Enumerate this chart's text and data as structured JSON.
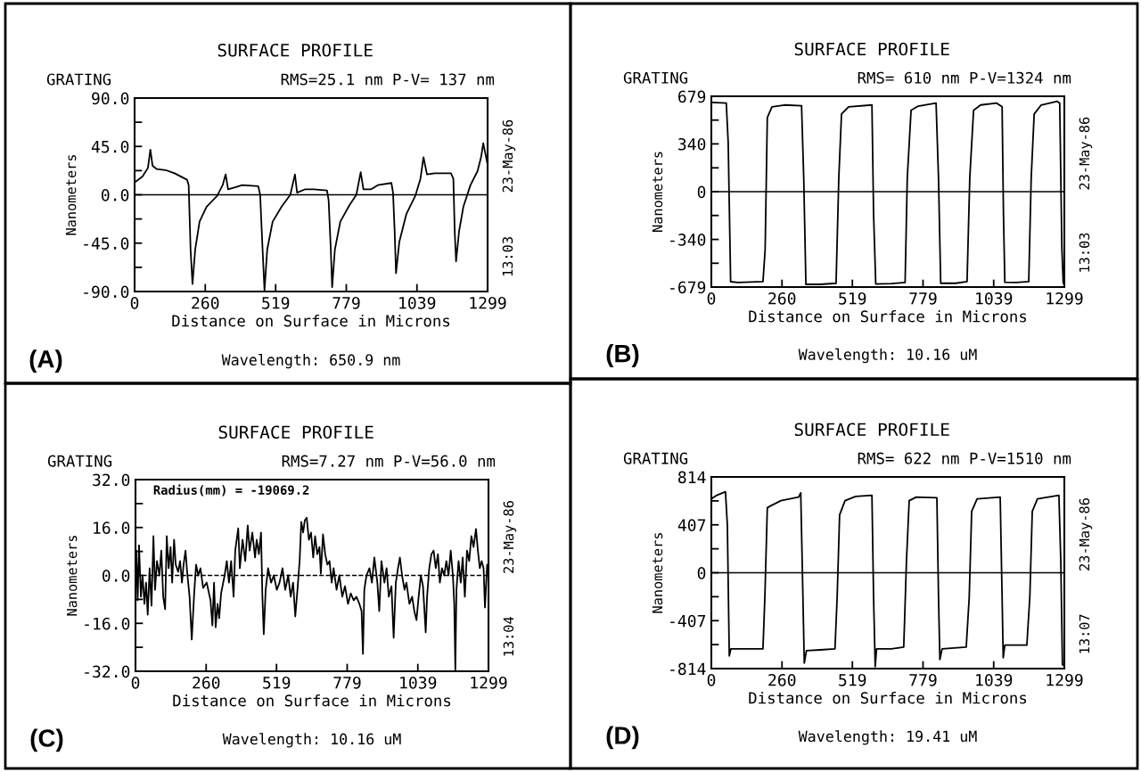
{
  "chart_data": [
    {
      "type": "line",
      "title": "SURFACE PROFILE",
      "xlabel": "Distance on Surface in Microns",
      "ylabel": "Nanometers",
      "annotations": [
        "GRATING",
        "RMS=25.1 nm P-V= 137 nm",
        "23-May-86",
        "13:03",
        "(A)",
        "Wavelength: 650.9 nm"
      ],
      "xlim": [
        0,
        1299
      ],
      "xticks": [
        0,
        260,
        519,
        779,
        1039,
        1299
      ],
      "ylim": [
        -90,
        90
      ],
      "yticks": [
        {
          "value": -90,
          "label": "-90.0"
        },
        {
          "value": -67.5,
          "label": null
        },
        {
          "value": -45,
          "label": "-45.0"
        },
        {
          "value": -22.5,
          "label": null
        },
        {
          "value": 0,
          "label": "0.0"
        },
        {
          "value": 22.5,
          "label": null
        },
        {
          "value": 45,
          "label": "45.0"
        },
        {
          "value": 67.5,
          "label": null
        },
        {
          "value": 90,
          "label": "90.0"
        }
      ],
      "grid": false,
      "legend": false,
      "marker": "none",
      "line_style": "solid",
      "ref_lines": [
        {
          "axis": "y",
          "value": 0,
          "color": "#000000",
          "line_style": "solid"
        }
      ],
      "series": [
        {
          "color": "#000000",
          "x": [
            3,
            29,
            49,
            58,
            66,
            81,
            114,
            147,
            193,
            199,
            206,
            213,
            223,
            239,
            265,
            304,
            324,
            335,
            344,
            370,
            396,
            455,
            462,
            471,
            478,
            488,
            508,
            541,
            573,
            590,
            598,
            626,
            659,
            708,
            714,
            722,
            727,
            737,
            757,
            790,
            816,
            832,
            842,
            869,
            895,
            945,
            951,
            957,
            962,
            974,
            1000,
            1033,
            1052,
            1063,
            1076,
            1105,
            1164,
            1173,
            1178,
            1183,
            1194,
            1210,
            1236,
            1262,
            1275,
            1283,
            1291,
            1299
          ],
          "values": [
            12,
            17,
            25,
            42,
            27,
            24,
            23,
            20,
            14,
            9,
            -51,
            -83,
            -51,
            -25,
            -11,
            -1,
            9,
            19,
            5,
            7,
            9,
            8,
            0,
            -51,
            -89,
            -51,
            -25,
            -11,
            0,
            19,
            2,
            5,
            5,
            4,
            -5,
            -51,
            -86,
            -51,
            -25,
            -10,
            0,
            21,
            5,
            5,
            9,
            11,
            2,
            -34,
            -73,
            -44,
            -18,
            -1,
            15,
            35,
            19,
            20,
            20,
            15,
            -34,
            -62,
            -34,
            -11,
            9,
            22,
            35,
            48,
            38,
            28
          ]
        }
      ]
    },
    {
      "type": "line",
      "title": "SURFACE PROFILE",
      "xlabel": "Distance on Surface in Microns",
      "ylabel": "Nanometers",
      "annotations": [
        "GRATING",
        "RMS= 610 nm P-V=1324 nm",
        "23-May-86",
        "13:03",
        "(B)",
        "Wavelength: 10.16 uM"
      ],
      "xlim": [
        0,
        1299
      ],
      "xticks": [
        0,
        260,
        519,
        779,
        1039,
        1299
      ],
      "ylim": [
        -679,
        679
      ],
      "yticks": [
        -679,
        {
          "value": -509.5,
          "label": null
        },
        -340,
        {
          "value": -169.5,
          "label": null
        },
        0,
        {
          "value": 169.5,
          "label": null
        },
        340,
        {
          "value": 509.5,
          "label": null
        },
        679
      ],
      "grid": false,
      "legend": false,
      "marker": "none",
      "line_style": "solid",
      "ref_lines": [
        {
          "axis": "y",
          "value": 0,
          "color": "#000000",
          "line_style": "solid"
        }
      ],
      "series": [
        {
          "color": "#000000",
          "x": [
            3,
            55,
            62,
            71,
            98,
            190,
            198,
            206,
            223,
            269,
            332,
            340,
            348,
            400,
            459,
            469,
            479,
            505,
            591,
            597,
            605,
            663,
            713,
            721,
            735,
            761,
            827,
            836,
            844,
            899,
            941,
            951,
            965,
            991,
            1050,
            1070,
            1075,
            1080,
            1122,
            1168,
            1177,
            1188,
            1214,
            1273,
            1282,
            1290,
            1295,
            1299
          ],
          "values": [
            635,
            630,
            350,
            -641,
            -646,
            -640,
            -411,
            528,
            604,
            617,
            612,
            96,
            -660,
            -660,
            -652,
            96,
            553,
            604,
            617,
            -157,
            -657,
            -655,
            -647,
            96,
            579,
            609,
            630,
            96,
            -652,
            -652,
            -640,
            96,
            579,
            617,
            630,
            604,
            -157,
            -645,
            -647,
            -640,
            96,
            553,
            617,
            643,
            630,
            -411,
            -652,
            -614
          ]
        }
      ]
    },
    {
      "type": "line",
      "title": "SURFACE PROFILE",
      "xlabel": "Distance on Surface in Microns",
      "ylabel": "Nanometers",
      "annotations": [
        "GRATING",
        "RMS=7.27 nm P-V=56.0 nm",
        "23-May-86",
        "13:04",
        "(C)",
        "Wavelength: 10.16 uM",
        "Radius(mm) = -19069.2"
      ],
      "xlim": [
        0,
        1299
      ],
      "xticks": [
        0,
        260,
        519,
        779,
        1039,
        1299
      ],
      "ylim": [
        -32,
        32
      ],
      "yticks": [
        {
          "value": -32,
          "label": "-32.0"
        },
        {
          "value": -24,
          "label": null
        },
        {
          "value": -16,
          "label": "-16.0"
        },
        {
          "value": -8,
          "label": null
        },
        {
          "value": 0,
          "label": "0.0"
        },
        {
          "value": 8,
          "label": null
        },
        {
          "value": 16,
          "label": "16.0"
        },
        {
          "value": 24,
          "label": null
        },
        {
          "value": 32,
          "label": "32.0"
        }
      ],
      "grid": false,
      "legend": false,
      "marker": "none",
      "line_style": "solid",
      "ref_lines": [
        {
          "axis": "y",
          "value": 0,
          "color": "#000000",
          "line_style": "dashed"
        }
      ],
      "series": [
        {
          "color": "#000000",
          "x": [
            3,
            8,
            13,
            20,
            26,
            33,
            39,
            45,
            52,
            59,
            66,
            72,
            79,
            88,
            95,
            102,
            109,
            115,
            122,
            129,
            135,
            142,
            148,
            157,
            164,
            171,
            177,
            184,
            190,
            199,
            207,
            216,
            223,
            231,
            239,
            249,
            262,
            276,
            283,
            289,
            295,
            302,
            308,
            315,
            328,
            336,
            344,
            352,
            361,
            367,
            378,
            384,
            394,
            404,
            413,
            420,
            430,
            440,
            446,
            454,
            462,
            467,
            472,
            479,
            488,
            499,
            509,
            520,
            530,
            541,
            551,
            562,
            571,
            580,
            588,
            596,
            604,
            610,
            617,
            623,
            630,
            638,
            646,
            654,
            661,
            669,
            677,
            682,
            690,
            698,
            706,
            714,
            722,
            729,
            740,
            750,
            761,
            771,
            782,
            792,
            803,
            813,
            824,
            832,
            837,
            842,
            850,
            861,
            870,
            879,
            890,
            897,
            905,
            916,
            924,
            932,
            942,
            950,
            958,
            966,
            973,
            981,
            990,
            997,
            1008,
            1018,
            1026,
            1034,
            1042,
            1050,
            1058,
            1068,
            1073,
            1081,
            1089,
            1097,
            1105,
            1113,
            1120,
            1128,
            1136,
            1144,
            1152,
            1160,
            1168,
            1173,
            1177,
            1181,
            1189,
            1197,
            1204,
            1212,
            1220,
            1228,
            1236,
            1244,
            1253,
            1260,
            1267,
            1274,
            1281,
            1286,
            1294,
            1299
          ],
          "values": [
            8.3,
            -8.3,
            10.1,
            -7.1,
            0,
            -9.5,
            -2.4,
            -13.1,
            2.4,
            -10.1,
            13.1,
            -4.8,
            4.8,
            0,
            8.3,
            -7.1,
            -11.3,
            13.1,
            2.4,
            9.5,
            -2.4,
            11.9,
            3.6,
            1.2,
            4.8,
            -2.4,
            3.6,
            8.3,
            1.2,
            -7.1,
            -21.4,
            -6,
            3.6,
            0,
            2.4,
            -4.2,
            -2.4,
            -8.3,
            -16.7,
            -2.4,
            -17.3,
            -9.5,
            -14.3,
            -6,
            0,
            4.8,
            -2.4,
            4.8,
            -7.1,
            8.3,
            15.7,
            2.4,
            11.9,
            4.8,
            16.7,
            8.3,
            14.3,
            6,
            11.9,
            7.1,
            14.3,
            -7.1,
            -19.6,
            -4.8,
            2.4,
            -2.4,
            0,
            -4.8,
            -2.4,
            2.4,
            -4.8,
            0,
            -7.1,
            -2.4,
            -13.7,
            -4.8,
            4.8,
            17.9,
            14.3,
            18.4,
            19.3,
            11.9,
            14.3,
            6,
            13.1,
            7.1,
            9.5,
            0.6,
            13.7,
            7.1,
            3.6,
            4.8,
            -2.4,
            2.4,
            -4.8,
            0,
            -7.1,
            -3.6,
            -9.5,
            -6,
            -8.3,
            -7.1,
            -9.5,
            -11.9,
            -26.2,
            -4.8,
            0,
            2.4,
            -2.4,
            6,
            -2.4,
            -11.9,
            4.8,
            -2.4,
            2.4,
            -7.1,
            -3.6,
            -20.8,
            -2.4,
            2.4,
            6,
            0,
            -4.8,
            -2.4,
            -9.5,
            -7.1,
            -11.9,
            -14.9,
            -7.1,
            0,
            -3.6,
            -19,
            -7.1,
            2.4,
            7.1,
            8.3,
            2.4,
            7.1,
            -2.4,
            2.4,
            0,
            4.8,
            0,
            8.3,
            0,
            -9.5,
            -31.5,
            -4.8,
            4.8,
            -2.4,
            6,
            -7.1,
            8.3,
            4.8,
            13.1,
            9.5,
            15.5,
            8.3,
            2.4,
            4.8,
            2.4,
            -10.7,
            3.6,
            1.2
          ]
        }
      ]
    },
    {
      "type": "line",
      "title": "SURFACE PROFILE",
      "xlabel": "Distance on Surface in Microns",
      "ylabel": "Nanometers",
      "annotations": [
        "GRATING",
        "RMS= 622 nm P-V=1510 nm",
        "23-May-86",
        "13:07",
        "(D)",
        "Wavelength: 19.41 uM"
      ],
      "xlim": [
        0,
        1299
      ],
      "xticks": [
        0,
        260,
        519,
        779,
        1039,
        1299
      ],
      "ylim": [
        -814,
        814
      ],
      "yticks": [
        -814,
        {
          "value": -610.5,
          "label": null
        },
        -407,
        {
          "value": -203.5,
          "label": null
        },
        0,
        {
          "value": 203.5,
          "label": null
        },
        407,
        {
          "value": 610.5,
          "label": null
        },
        814
      ],
      "grid": false,
      "legend": false,
      "marker": "none",
      "line_style": "solid",
      "ref_lines": [
        {
          "axis": "y",
          "value": 0,
          "color": "#000000",
          "line_style": "solid"
        }
      ],
      "series": [
        {
          "color": "#000000",
          "x": [
            0,
            20,
            52,
            59,
            66,
            72,
            112,
            190,
            197,
            206,
            217,
            256,
            321,
            329,
            337,
            342,
            350,
            400,
            455,
            463,
            472,
            492,
            531,
            591,
            597,
            603,
            608,
            663,
            708,
            718,
            728,
            754,
            830,
            836,
            841,
            849,
            938,
            949,
            958,
            978,
            1063,
            1070,
            1074,
            1080,
            1161,
            1172,
            1181,
            1200,
            1279,
            1286,
            1292,
            1299
          ],
          "values": [
            628,
            658,
            688,
            400,
            -706,
            -646,
            -646,
            -646,
            -206,
            552,
            567,
            612,
            643,
            679,
            -206,
            -767,
            -661,
            -655,
            -646,
            -206,
            491,
            612,
            649,
            658,
            -206,
            -797,
            -646,
            -646,
            -631,
            97,
            612,
            643,
            637,
            -206,
            -737,
            -646,
            -631,
            -206,
            521,
            628,
            643,
            -206,
            -722,
            -615,
            -615,
            -206,
            521,
            628,
            658,
            97,
            -782,
            -782
          ]
        }
      ]
    }
  ]
}
